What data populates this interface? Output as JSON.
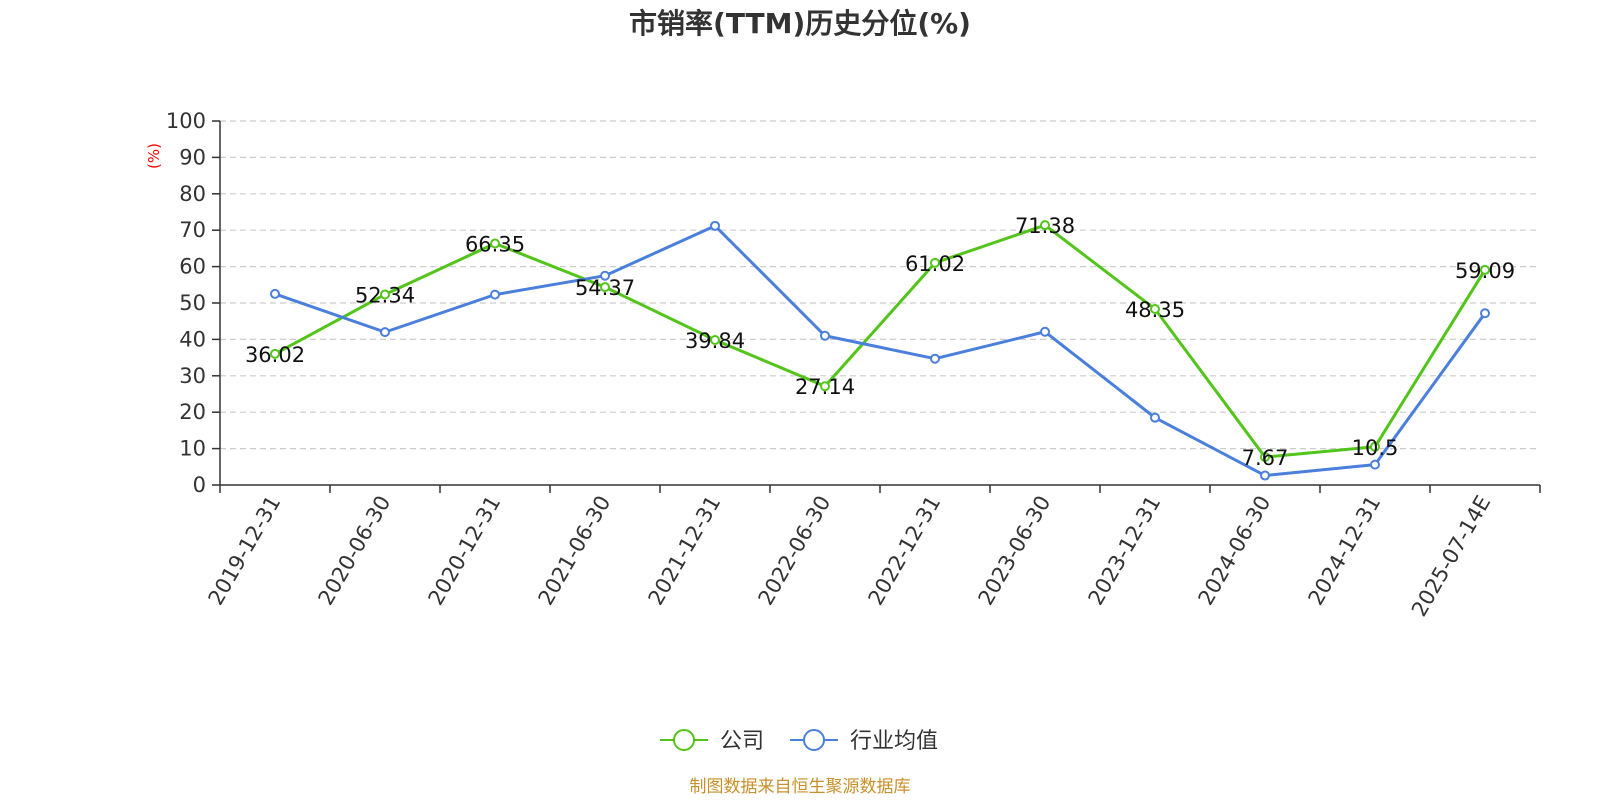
{
  "chart_data": {
    "type": "line",
    "title": "市销率(TTM)历史分位(%)",
    "unit_label": "(%)",
    "categories": [
      "2019-12-31",
      "2020-06-30",
      "2020-12-31",
      "2021-06-30",
      "2021-12-31",
      "2022-06-30",
      "2022-12-31",
      "2023-06-30",
      "2023-12-31",
      "2024-06-30",
      "2024-12-31",
      "2025-07-14E"
    ],
    "ylim": [
      0,
      100
    ],
    "yticks": [
      0,
      10,
      20,
      30,
      40,
      50,
      60,
      70,
      80,
      90,
      100
    ],
    "grid": true,
    "legend_position": "bottom",
    "series": [
      {
        "name": "公司",
        "color": "#52c41a",
        "values": [
          36.02,
          52.34,
          66.35,
          54.37,
          39.84,
          27.14,
          61.02,
          71.38,
          48.35,
          7.67,
          10.5,
          59.09
        ],
        "labels": [
          "36.02",
          "52.34",
          "66.35",
          "54.37",
          "39.84",
          "27.14",
          "61.02",
          "71.38",
          "48.35",
          "7.67",
          "10.5",
          "59.09"
        ]
      },
      {
        "name": "行业均值",
        "color": "#4a7fdc",
        "values": [
          52.5,
          42,
          52.3,
          57.5,
          71.2,
          41,
          34.7,
          42.1,
          18.5,
          2.6,
          5.6,
          47.2
        ]
      }
    ],
    "source": "制图数据来自恒生聚源数据库"
  }
}
